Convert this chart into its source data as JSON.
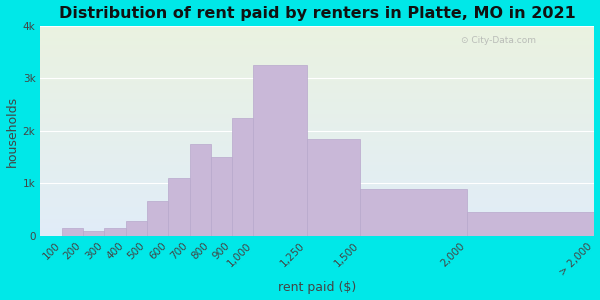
{
  "title": "Distribution of rent paid by renters in Platte, MO in 2021",
  "xlabel": "rent paid ($)",
  "ylabel": "households",
  "bar_color": "#c9b8d8",
  "bar_edge_color": "#b8a8cc",
  "bar_linewidth": 0.5,
  "bin_edges": [
    0,
    100,
    200,
    300,
    400,
    500,
    600,
    700,
    800,
    900,
    1000,
    1250,
    1500,
    2000,
    2600
  ],
  "values": [
    0,
    150,
    100,
    150,
    280,
    670,
    1100,
    1750,
    1500,
    2250,
    3250,
    1850,
    900,
    450
  ],
  "xtick_positions": [
    100,
    200,
    300,
    400,
    500,
    600,
    700,
    800,
    900,
    1000,
    1250,
    1500,
    2000,
    2600
  ],
  "xtick_labels": [
    "100",
    "200",
    "300",
    "400",
    "500",
    "600",
    "700",
    "800",
    "900",
    "1,000",
    "1,250",
    "1,500",
    "2,000",
    "> 2,000"
  ],
  "ylim": [
    0,
    4000
  ],
  "yticks": [
    0,
    1000,
    2000,
    3000,
    4000
  ],
  "ytick_labels": [
    "0",
    "1k",
    "2k",
    "3k",
    "4k"
  ],
  "bg_outer": "#00e8e8",
  "bg_plot_top": "#eaf2e0",
  "bg_plot_bottom": "#e0ecf8",
  "title_fontsize": 11.5,
  "axis_label_fontsize": 9,
  "tick_fontsize": 7.5
}
